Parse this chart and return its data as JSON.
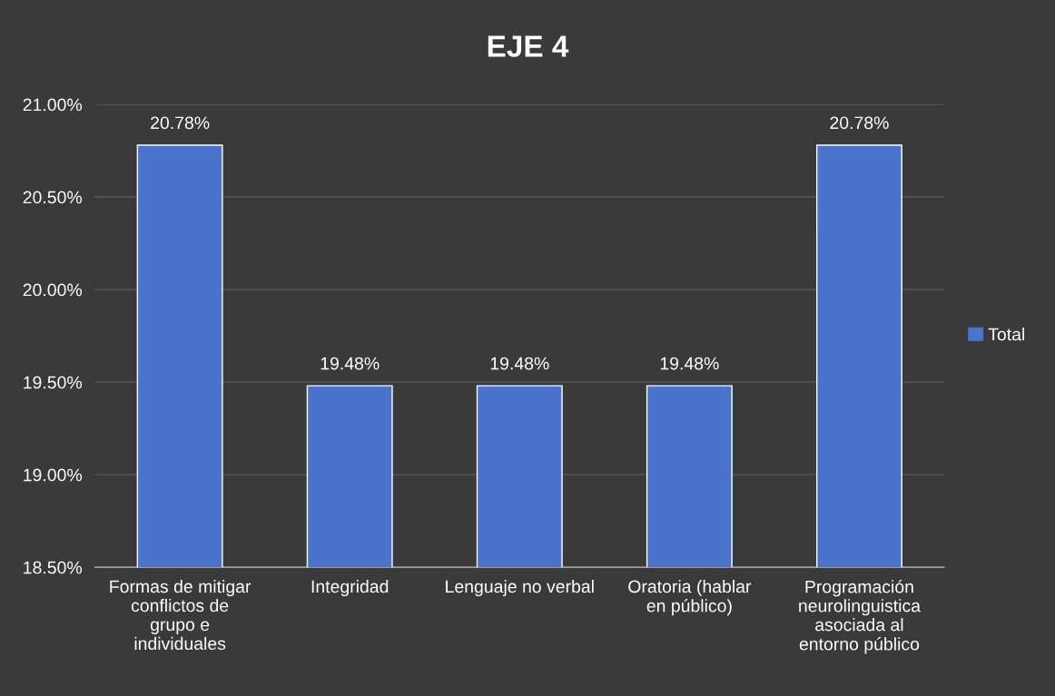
{
  "chart_data": {
    "type": "bar",
    "title": "EJE 4",
    "categories": [
      "Formas de mitigar conflictos de grupo e individuales",
      "Integridad",
      "Lenguaje no verbal",
      "Oratoria (hablar en público)",
      "Programación neurolinguistica asociada al entorno público"
    ],
    "series": [
      {
        "name": "Total",
        "color": "#4a74cc",
        "values": [
          20.78,
          19.48,
          19.48,
          19.48,
          20.78
        ],
        "value_labels": [
          "20.78%",
          "19.48%",
          "19.48%",
          "19.48%",
          "20.78%"
        ]
      }
    ],
    "ylim": [
      18.5,
      21.0
    ],
    "yticks": [
      {
        "value": 18.5,
        "label": "18.50%"
      },
      {
        "value": 19.0,
        "label": "19.00%"
      },
      {
        "value": 19.5,
        "label": "19.50%"
      },
      {
        "value": 20.0,
        "label": "20.00%"
      },
      {
        "value": 20.5,
        "label": "20.50%"
      },
      {
        "value": 21.0,
        "label": "21.00%"
      }
    ],
    "grid": "y",
    "legend": "right"
  }
}
